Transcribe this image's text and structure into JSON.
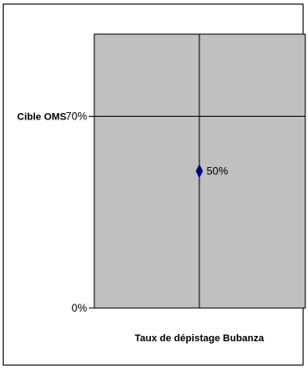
{
  "chart_data": {
    "type": "scatter",
    "xlabel": "Taux de dépistage Bubanza",
    "ylabel": "",
    "ylim": [
      0,
      100
    ],
    "y_ticks": [
      {
        "value": 0,
        "label": "0%"
      },
      {
        "value": 70,
        "label": "70%"
      }
    ],
    "reference_lines": [
      {
        "axis": "y",
        "value": 70,
        "label": "Cible OMS"
      }
    ],
    "series": [
      {
        "points": [
          {
            "y": 50,
            "label": "50%"
          }
        ]
      }
    ],
    "grid": false,
    "legend": "none",
    "colors": {
      "plot_bg": "#c0c0c0",
      "marker": "#000080",
      "lines": "#000000"
    }
  }
}
